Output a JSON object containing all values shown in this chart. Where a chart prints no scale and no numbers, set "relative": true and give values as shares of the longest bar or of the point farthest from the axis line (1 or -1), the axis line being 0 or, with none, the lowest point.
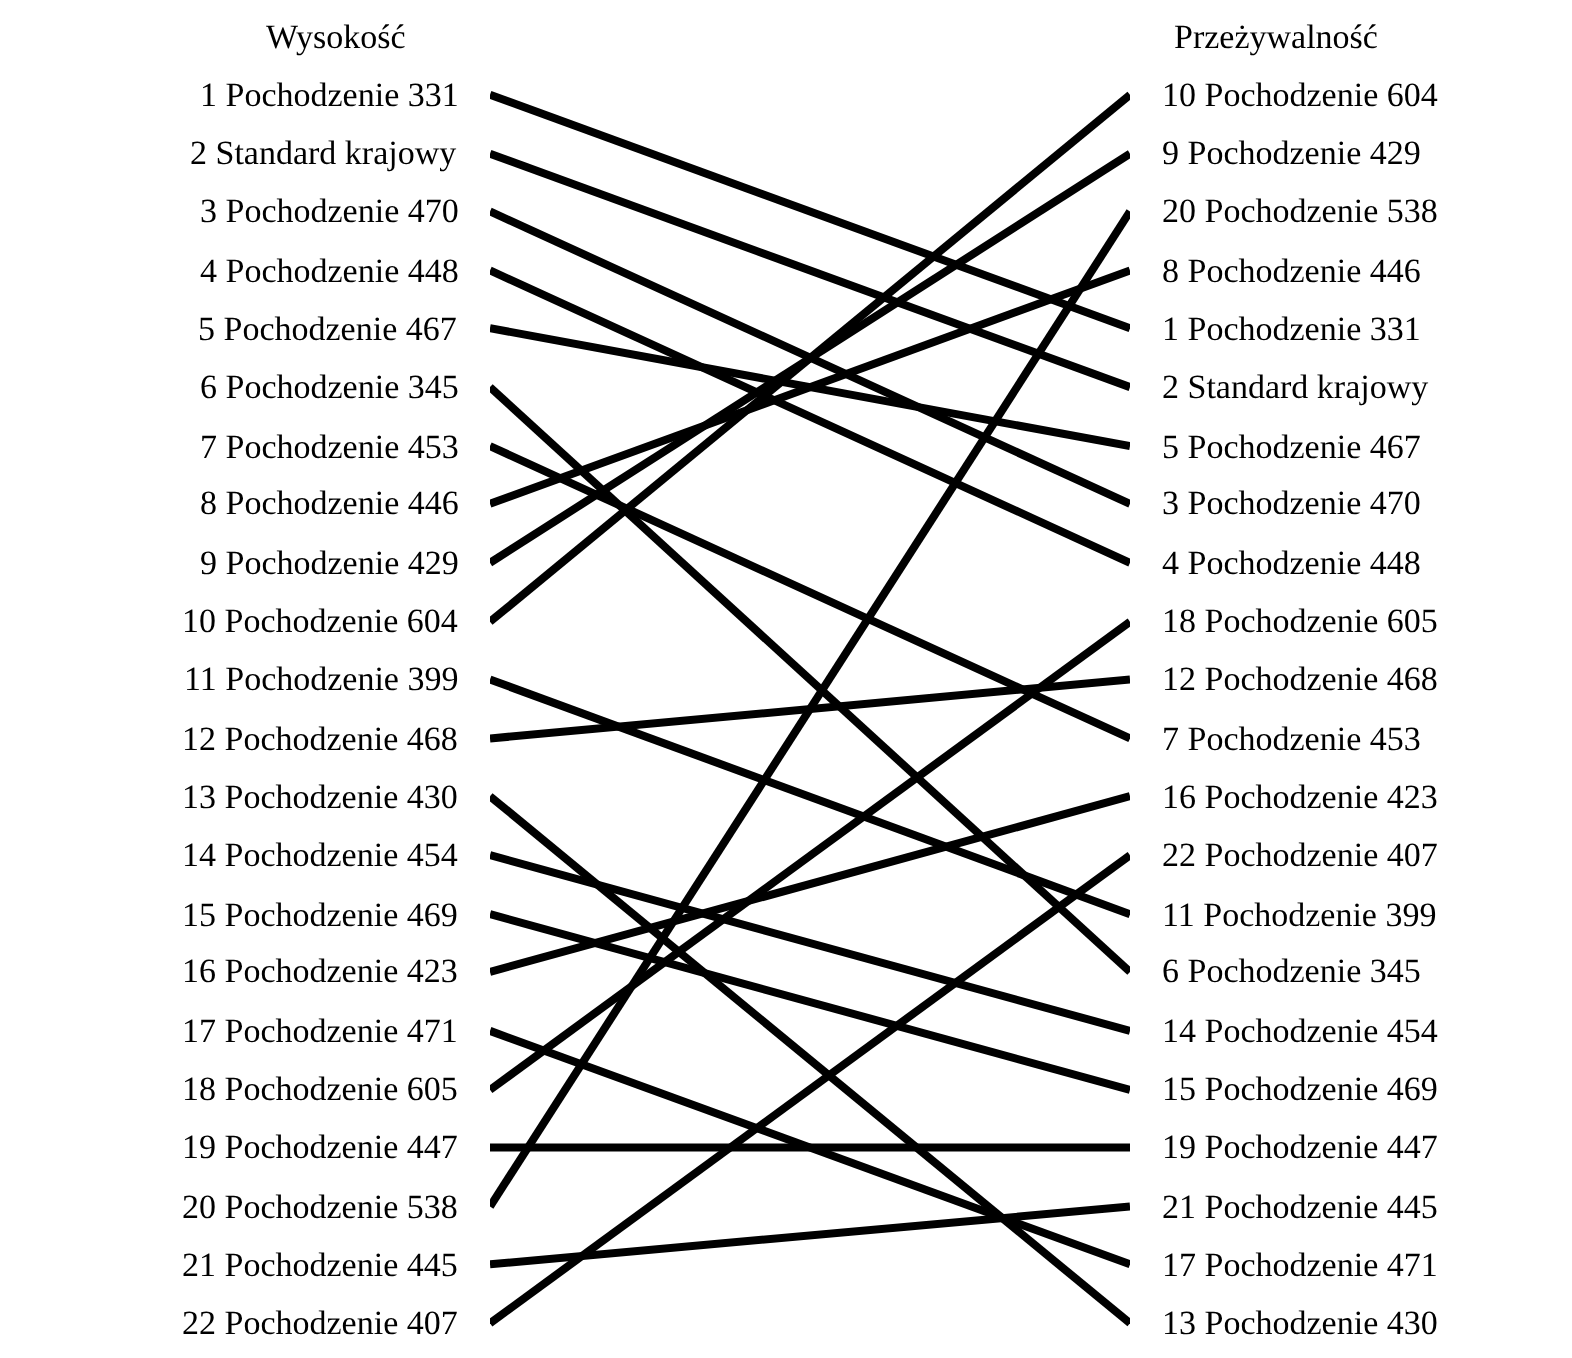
{
  "chart_data": {
    "type": "line",
    "relative": true,
    "categories": [
      null,
      null
    ],
    "annotations": [
      "Wysokość",
      "Przeżywalność"
    ],
    "series": [
      {
        "name": "1 Pochodzenie 331",
        "color": "#000000",
        "values": [
          1.0,
          0.81
        ]
      },
      {
        "name": "2 Standard krajowy",
        "color": "#000000",
        "values": [
          0.952,
          0.762
        ]
      },
      {
        "name": "3 Pochodzenie 470",
        "color": "#000000",
        "values": [
          0.905,
          0.667
        ]
      },
      {
        "name": "4 Pochodzenie 448",
        "color": "#000000",
        "values": [
          0.857,
          0.619
        ]
      },
      {
        "name": "5 Pochodzenie 467",
        "color": "#000000",
        "values": [
          0.81,
          0.714
        ]
      },
      {
        "name": "6 Pochodzenie 345",
        "color": "#000000",
        "values": [
          0.762,
          0.286
        ]
      },
      {
        "name": "7 Pochodzenie 453",
        "color": "#000000",
        "values": [
          0.714,
          0.476
        ]
      },
      {
        "name": "8 Pochodzenie 446",
        "color": "#000000",
        "values": [
          0.667,
          0.857
        ]
      },
      {
        "name": "9 Pochodzenie 429",
        "color": "#000000",
        "values": [
          0.619,
          0.952
        ]
      },
      {
        "name": "10 Pochodzenie 604",
        "color": "#000000",
        "values": [
          0.571,
          1.0
        ]
      },
      {
        "name": "11 Pochodzenie 399",
        "color": "#000000",
        "values": [
          0.524,
          0.333
        ]
      },
      {
        "name": "12 Pochodzenie 468",
        "color": "#000000",
        "values": [
          0.476,
          0.524
        ]
      },
      {
        "name": "13 Pochodzenie 430",
        "color": "#000000",
        "values": [
          0.429,
          0.0
        ]
      },
      {
        "name": "14 Pochodzenie 454",
        "color": "#000000",
        "values": [
          0.381,
          0.238
        ]
      },
      {
        "name": "15 Pochodzenie 469",
        "color": "#000000",
        "values": [
          0.333,
          0.19
        ]
      },
      {
        "name": "16 Pochodzenie 423",
        "color": "#000000",
        "values": [
          0.286,
          0.429
        ]
      },
      {
        "name": "17 Pochodzenie 471",
        "color": "#000000",
        "values": [
          0.238,
          0.048
        ]
      },
      {
        "name": "18 Pochodzenie 605",
        "color": "#000000",
        "values": [
          0.19,
          0.571
        ]
      },
      {
        "name": "19 Pochodzenie 447",
        "color": "#000000",
        "values": [
          0.143,
          0.143
        ]
      },
      {
        "name": "20 Pochodzenie 538",
        "color": "#000000",
        "values": [
          0.095,
          0.905
        ]
      },
      {
        "name": "21 Pochodzenie 445",
        "color": "#000000",
        "values": [
          0.048,
          0.095
        ]
      },
      {
        "name": "22 Pochodzenie 407",
        "color": "#000000",
        "values": [
          0.0,
          0.381
        ]
      }
    ]
  }
}
